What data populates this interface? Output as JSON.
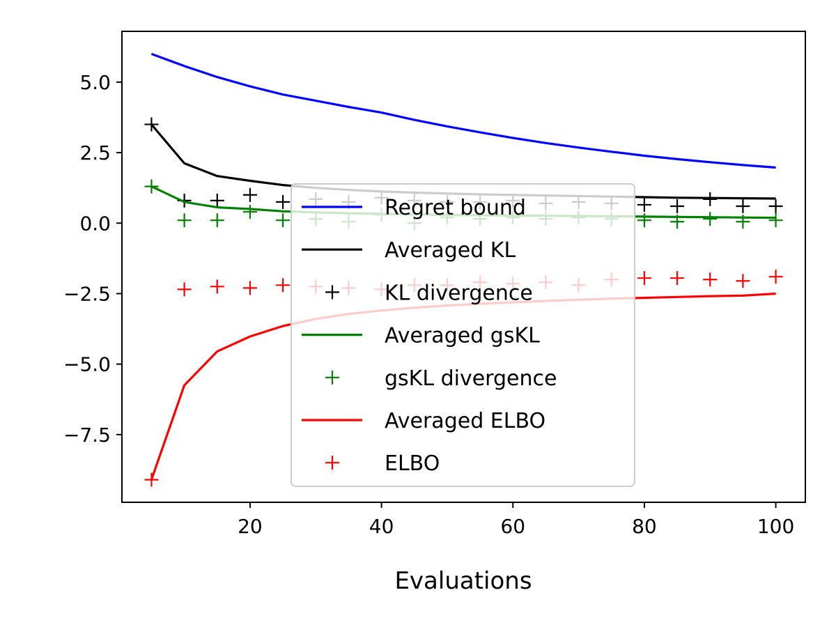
{
  "chart_data": {
    "type": "line",
    "title": "",
    "xlabel": "Evaluations",
    "ylabel": "",
    "xlim": [
      0.5,
      104.5
    ],
    "ylim": [
      -9.9,
      6.8
    ],
    "xticks": [
      20,
      40,
      60,
      80,
      100
    ],
    "xtick_labels": [
      "20",
      "40",
      "60",
      "80",
      "100"
    ],
    "yticks": [
      5.0,
      2.5,
      0.0,
      -2.5,
      -5.0,
      -7.5
    ],
    "ytick_labels": [
      "5.0",
      "2.5",
      "0.0",
      "−2.5",
      "−5.0",
      "−7.5"
    ],
    "grid": false,
    "legend_position": "center",
    "x": [
      5,
      10,
      15,
      20,
      25,
      30,
      35,
      40,
      45,
      50,
      55,
      60,
      65,
      70,
      75,
      80,
      85,
      90,
      95,
      100
    ],
    "series": [
      {
        "name": "Regret bound",
        "kind": "line",
        "color": "#0000ff",
        "values": [
          6.0,
          5.57,
          5.18,
          4.85,
          4.56,
          4.34,
          4.12,
          3.92,
          3.66,
          3.43,
          3.22,
          3.02,
          2.84,
          2.68,
          2.53,
          2.39,
          2.27,
          2.16,
          2.06,
          1.97
        ]
      },
      {
        "name": "Averaged KL",
        "kind": "line",
        "color": "#000000",
        "values": [
          3.5,
          2.12,
          1.67,
          1.5,
          1.35,
          1.25,
          1.18,
          1.12,
          1.08,
          1.05,
          1.02,
          1.0,
          0.98,
          0.96,
          0.94,
          0.92,
          0.9,
          0.89,
          0.88,
          0.87
        ]
      },
      {
        "name": "KL divergence",
        "kind": "marker",
        "color": "#000000",
        "values": [
          3.5,
          0.8,
          0.8,
          1.0,
          0.75,
          0.85,
          0.75,
          0.9,
          0.8,
          0.75,
          0.75,
          0.8,
          0.7,
          0.75,
          0.7,
          0.65,
          0.6,
          0.85,
          0.6,
          0.6
        ]
      },
      {
        "name": "Averaged gsKL",
        "kind": "line",
        "color": "#008000",
        "values": [
          1.3,
          0.75,
          0.56,
          0.5,
          0.42,
          0.38,
          0.35,
          0.33,
          0.31,
          0.29,
          0.28,
          0.27,
          0.26,
          0.25,
          0.24,
          0.23,
          0.22,
          0.21,
          0.2,
          0.19
        ]
      },
      {
        "name": "gsKL divergence",
        "kind": "marker",
        "color": "#008000",
        "values": [
          1.3,
          0.1,
          0.1,
          0.4,
          0.1,
          0.15,
          0.05,
          0.3,
          0.0,
          0.2,
          0.15,
          0.2,
          0.15,
          0.2,
          0.15,
          0.1,
          0.05,
          0.15,
          0.05,
          0.1
        ]
      },
      {
        "name": "Averaged ELBO",
        "kind": "line",
        "color": "#ff0000",
        "values": [
          -9.1,
          -5.75,
          -4.55,
          -4.02,
          -3.65,
          -3.4,
          -3.22,
          -3.1,
          -3.0,
          -2.92,
          -2.86,
          -2.81,
          -2.76,
          -2.72,
          -2.68,
          -2.65,
          -2.62,
          -2.59,
          -2.57,
          -2.5
        ]
      },
      {
        "name": "ELBO",
        "kind": "marker",
        "color": "#ff0000",
        "values": [
          -9.1,
          -2.35,
          -2.25,
          -2.3,
          -2.2,
          -2.25,
          -2.3,
          -2.35,
          -2.2,
          -2.2,
          -2.1,
          -2.15,
          -2.1,
          -2.2,
          -2.0,
          -1.95,
          -1.95,
          -2.0,
          -2.05,
          -1.9
        ]
      }
    ]
  }
}
